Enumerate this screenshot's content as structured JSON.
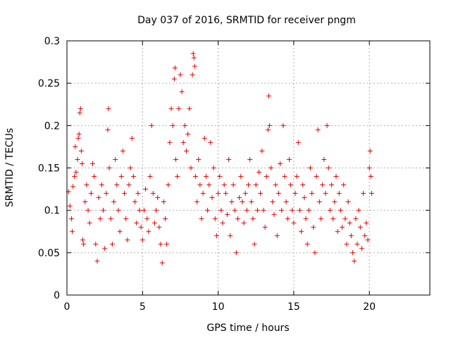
{
  "chart_data": {
    "type": "scatter",
    "title": "Day 037 of 2016, SRMTID for receiver pngm",
    "xlabel": "GPS time / hours",
    "ylabel": "SRMTID / TECUs",
    "xlim": [
      0,
      24
    ],
    "ylim": [
      0,
      0.3
    ],
    "xticks": [
      0,
      5,
      10,
      15,
      20
    ],
    "xtick_labels": [
      "0",
      "5",
      "10",
      "15",
      "20"
    ],
    "yticks": [
      0,
      0.05,
      0.1,
      0.15,
      0.2,
      0.25,
      0.3
    ],
    "ytick_labels": [
      "0",
      "0.05",
      "0.1",
      "0.15",
      "0.2",
      "0.25",
      "0.3"
    ],
    "grid": true,
    "marker": "+",
    "series": [
      {
        "name": "SRMTID",
        "color": "#e00000",
        "points": [
          [
            0.1,
            0.122
          ],
          [
            0.2,
            0.105
          ],
          [
            0.3,
            0.09
          ],
          [
            0.35,
            0.075
          ],
          [
            0.4,
            0.128
          ],
          [
            0.5,
            0.14
          ],
          [
            0.55,
            0.175
          ],
          [
            0.6,
            0.145
          ],
          [
            0.7,
            0.16
          ],
          [
            0.75,
            0.185
          ],
          [
            0.8,
            0.19
          ],
          [
            0.85,
            0.215
          ],
          [
            0.9,
            0.22
          ],
          [
            0.95,
            0.17
          ],
          [
            1.0,
            0.155
          ],
          [
            1.05,
            0.065
          ],
          [
            1.1,
            0.06
          ],
          [
            1.2,
            0.11
          ],
          [
            1.3,
            0.13
          ],
          [
            1.4,
            0.1
          ],
          [
            1.5,
            0.085
          ],
          [
            1.6,
            0.12
          ],
          [
            1.7,
            0.155
          ],
          [
            1.8,
            0.14
          ],
          [
            1.9,
            0.06
          ],
          [
            2.0,
            0.04
          ],
          [
            2.1,
            0.115
          ],
          [
            2.2,
            0.09
          ],
          [
            2.3,
            0.13
          ],
          [
            2.4,
            0.1
          ],
          [
            2.5,
            0.055
          ],
          [
            2.6,
            0.12
          ],
          [
            2.7,
            0.195
          ],
          [
            2.75,
            0.22
          ],
          [
            2.8,
            0.15
          ],
          [
            2.9,
            0.09
          ],
          [
            3.0,
            0.06
          ],
          [
            3.1,
            0.11
          ],
          [
            3.2,
            0.16
          ],
          [
            3.3,
            0.13
          ],
          [
            3.4,
            0.1
          ],
          [
            3.5,
            0.075
          ],
          [
            3.6,
            0.14
          ],
          [
            3.7,
            0.17
          ],
          [
            3.8,
            0.12
          ],
          [
            3.9,
            0.09
          ],
          [
            4.0,
            0.065
          ],
          [
            4.1,
            0.13
          ],
          [
            4.2,
            0.15
          ],
          [
            4.3,
            0.185
          ],
          [
            4.4,
            0.14
          ],
          [
            4.5,
            0.11
          ],
          [
            4.6,
            0.085
          ],
          [
            4.7,
            0.12
          ],
          [
            4.8,
            0.1
          ],
          [
            4.9,
            0.08
          ],
          [
            5.0,
            0.065
          ],
          [
            5.1,
            0.1
          ],
          [
            5.2,
            0.125
          ],
          [
            5.3,
            0.09
          ],
          [
            5.4,
            0.075
          ],
          [
            5.5,
            0.14
          ],
          [
            5.6,
            0.2
          ],
          [
            5.7,
            0.12
          ],
          [
            5.8,
            0.085
          ],
          [
            5.9,
            0.1
          ],
          [
            6.0,
            0.115
          ],
          [
            6.1,
            0.08
          ],
          [
            6.2,
            0.06
          ],
          [
            6.3,
            0.038
          ],
          [
            6.4,
            0.11
          ],
          [
            6.5,
            0.09
          ],
          [
            6.6,
            0.06
          ],
          [
            6.7,
            0.13
          ],
          [
            6.8,
            0.18
          ],
          [
            6.9,
            0.22
          ],
          [
            7.0,
            0.2
          ],
          [
            7.1,
            0.255
          ],
          [
            7.15,
            0.268
          ],
          [
            7.2,
            0.16
          ],
          [
            7.3,
            0.14
          ],
          [
            7.4,
            0.22
          ],
          [
            7.5,
            0.26
          ],
          [
            7.6,
            0.24
          ],
          [
            7.7,
            0.18
          ],
          [
            7.8,
            0.2
          ],
          [
            7.9,
            0.17
          ],
          [
            8.0,
            0.19
          ],
          [
            8.1,
            0.22
          ],
          [
            8.2,
            0.15
          ],
          [
            8.3,
            0.26
          ],
          [
            8.35,
            0.285
          ],
          [
            8.4,
            0.28
          ],
          [
            8.45,
            0.27
          ],
          [
            8.5,
            0.14
          ],
          [
            8.6,
            0.11
          ],
          [
            8.7,
            0.16
          ],
          [
            8.8,
            0.13
          ],
          [
            8.9,
            0.09
          ],
          [
            9.0,
            0.12
          ],
          [
            9.1,
            0.185
          ],
          [
            9.2,
            0.14
          ],
          [
            9.3,
            0.1
          ],
          [
            9.4,
            0.13
          ],
          [
            9.5,
            0.18
          ],
          [
            9.6,
            0.115
          ],
          [
            9.7,
            0.15
          ],
          [
            9.8,
            0.09
          ],
          [
            9.9,
            0.07
          ],
          [
            10.0,
            0.12
          ],
          [
            10.1,
            0.14
          ],
          [
            10.2,
            0.1
          ],
          [
            10.3,
            0.085
          ],
          [
            10.4,
            0.13
          ],
          [
            10.5,
            0.12
          ],
          [
            10.6,
            0.095
          ],
          [
            10.7,
            0.16
          ],
          [
            10.8,
            0.07
          ],
          [
            10.9,
            0.11
          ],
          [
            11.0,
            0.13
          ],
          [
            11.1,
            0.1
          ],
          [
            11.2,
            0.05
          ],
          [
            11.3,
            0.09
          ],
          [
            11.4,
            0.115
          ],
          [
            11.5,
            0.14
          ],
          [
            11.6,
            0.11
          ],
          [
            11.7,
            0.085
          ],
          [
            11.8,
            0.12
          ],
          [
            11.9,
            0.1
          ],
          [
            12.0,
            0.13
          ],
          [
            12.1,
            0.16
          ],
          [
            12.2,
            0.11
          ],
          [
            12.3,
            0.09
          ],
          [
            12.4,
            0.06
          ],
          [
            12.5,
            0.13
          ],
          [
            12.6,
            0.1
          ],
          [
            12.7,
            0.145
          ],
          [
            12.8,
            0.12
          ],
          [
            12.9,
            0.17
          ],
          [
            13.0,
            0.1
          ],
          [
            13.1,
            0.08
          ],
          [
            13.2,
            0.14
          ],
          [
            13.3,
            0.195
          ],
          [
            13.35,
            0.235
          ],
          [
            13.4,
            0.2
          ],
          [
            13.5,
            0.15
          ],
          [
            13.6,
            0.11
          ],
          [
            13.7,
            0.095
          ],
          [
            13.8,
            0.13
          ],
          [
            13.9,
            0.07
          ],
          [
            14.0,
            0.12
          ],
          [
            14.1,
            0.155
          ],
          [
            14.2,
            0.1
          ],
          [
            14.3,
            0.2
          ],
          [
            14.4,
            0.14
          ],
          [
            14.5,
            0.11
          ],
          [
            14.6,
            0.09
          ],
          [
            14.7,
            0.16
          ],
          [
            14.8,
            0.13
          ],
          [
            14.9,
            0.1
          ],
          [
            15.0,
            0.085
          ],
          [
            15.1,
            0.12
          ],
          [
            15.2,
            0.14
          ],
          [
            15.3,
            0.18
          ],
          [
            15.4,
            0.1
          ],
          [
            15.5,
            0.075
          ],
          [
            15.6,
            0.13
          ],
          [
            15.7,
            0.115
          ],
          [
            15.8,
            0.09
          ],
          [
            15.9,
            0.06
          ],
          [
            16.0,
            0.1
          ],
          [
            16.1,
            0.15
          ],
          [
            16.2,
            0.12
          ],
          [
            16.3,
            0.08
          ],
          [
            16.4,
            0.05
          ],
          [
            16.5,
            0.14
          ],
          [
            16.6,
            0.195
          ],
          [
            16.7,
            0.11
          ],
          [
            16.8,
            0.09
          ],
          [
            16.9,
            0.13
          ],
          [
            17.0,
            0.16
          ],
          [
            17.1,
            0.12
          ],
          [
            17.2,
            0.2
          ],
          [
            17.3,
            0.15
          ],
          [
            17.4,
            0.1
          ],
          [
            17.5,
            0.13
          ],
          [
            17.6,
            0.09
          ],
          [
            17.7,
            0.11
          ],
          [
            17.8,
            0.14
          ],
          [
            17.9,
            0.075
          ],
          [
            18.0,
            0.12
          ],
          [
            18.1,
            0.1
          ],
          [
            18.2,
            0.08
          ],
          [
            18.3,
            0.13
          ],
          [
            18.4,
            0.09
          ],
          [
            18.5,
            0.06
          ],
          [
            18.6,
            0.11
          ],
          [
            18.7,
            0.085
          ],
          [
            18.8,
            0.07
          ],
          [
            18.9,
            0.05
          ],
          [
            19.0,
            0.04
          ],
          [
            19.1,
            0.09
          ],
          [
            19.2,
            0.06
          ],
          [
            19.3,
            0.1
          ],
          [
            19.4,
            0.08
          ],
          [
            19.5,
            0.055
          ],
          [
            19.6,
            0.12
          ],
          [
            19.7,
            0.07
          ],
          [
            19.8,
            0.085
          ],
          [
            19.9,
            0.065
          ],
          [
            20.0,
            0.15
          ],
          [
            20.05,
            0.17
          ],
          [
            20.1,
            0.14
          ],
          [
            20.15,
            0.12
          ]
        ]
      }
    ]
  }
}
